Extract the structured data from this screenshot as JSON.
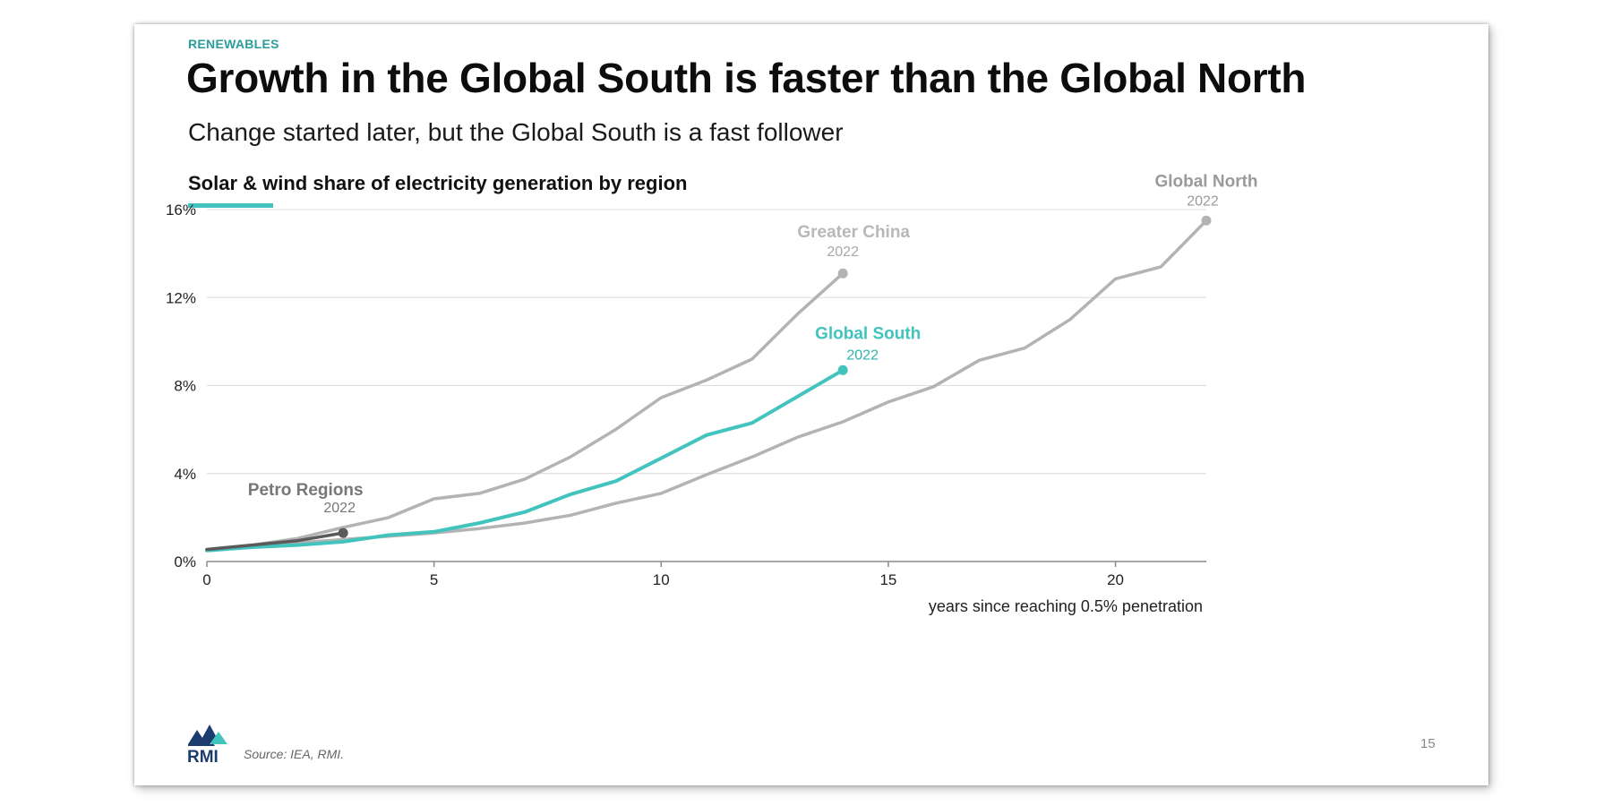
{
  "kicker": "RENEWABLES",
  "title": "Growth in the Global South is faster than the Global North",
  "subtitle": "Change started later, but the Global South is a fast follower",
  "source": "Source: IEA, RMI.",
  "logo_text": "RMI",
  "page_number": "15",
  "colors": {
    "accent": "#43c3bd",
    "gray": "#b3b3b3",
    "dark": "#5a5a5a",
    "teal_text": "#2a9d9a"
  },
  "chart_data": {
    "type": "line",
    "title": "Solar & wind share of electricity generation by region",
    "xlabel": "years since reaching 0.5% penetration",
    "ylabel": "",
    "xlim": [
      0,
      22
    ],
    "ylim": [
      0,
      16
    ],
    "x_ticks": [
      0,
      5,
      10,
      15,
      20
    ],
    "y_ticks": [
      0,
      4,
      8,
      12,
      16
    ],
    "y_tick_labels": [
      "0%",
      "4%",
      "8%",
      "12%",
      "16%"
    ],
    "grid": true,
    "legend": "none (direct labels)",
    "series": [
      {
        "name": "Global North",
        "end_label": "2022",
        "color": "#b3b3b3",
        "x": [
          0,
          1,
          2,
          3,
          4,
          5,
          6,
          7,
          8,
          9,
          10,
          11,
          12,
          13,
          14,
          15,
          16,
          17,
          18,
          19,
          20,
          21,
          22
        ],
        "y": [
          0.5,
          0.7,
          0.85,
          1.0,
          1.15,
          1.3,
          1.5,
          1.75,
          2.1,
          2.65,
          3.1,
          3.95,
          4.75,
          5.65,
          6.35,
          7.25,
          7.95,
          9.15,
          9.7,
          11.0,
          12.85,
          13.4,
          15.5
        ]
      },
      {
        "name": "Greater China",
        "end_label": "2022",
        "color": "#b3b3b3",
        "x": [
          0,
          1,
          2,
          3,
          4,
          5,
          6,
          7,
          8,
          9,
          10,
          11,
          12,
          13,
          14
        ],
        "y": [
          0.5,
          0.75,
          1.05,
          1.55,
          2.0,
          2.85,
          3.1,
          3.75,
          4.75,
          6.0,
          7.45,
          8.25,
          9.2,
          11.25,
          13.1
        ]
      },
      {
        "name": "Global South",
        "end_label": "2022",
        "color": "#43c3bd",
        "x": [
          0,
          1,
          2,
          3,
          4,
          5,
          6,
          7,
          8,
          9,
          10,
          11,
          12,
          13,
          14
        ],
        "y": [
          0.5,
          0.65,
          0.75,
          0.9,
          1.2,
          1.35,
          1.75,
          2.25,
          3.05,
          3.65,
          4.7,
          5.75,
          6.3,
          7.5,
          8.7
        ]
      },
      {
        "name": "Petro Regions",
        "end_label": "2022",
        "color": "#5a5a5a",
        "x": [
          0,
          1,
          2,
          3
        ],
        "y": [
          0.55,
          0.75,
          0.95,
          1.3
        ]
      }
    ]
  }
}
